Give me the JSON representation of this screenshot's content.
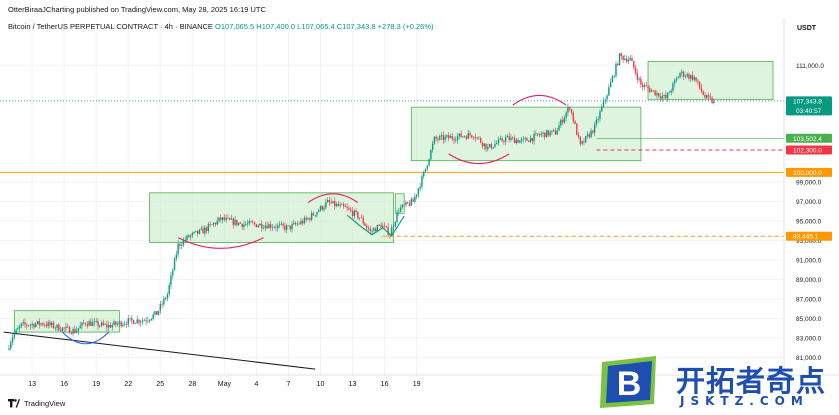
{
  "header": {
    "publisher": "OtterBiraaJCharting published on TradingView.com, May 28, 2025 16:19 UTC",
    "symbol": "Bitcoin / TetherUS PERPETUAL CONTRACT · 4h · BINANCE",
    "ohlc": "O107,065.5 H107,400.0 L107,065.4 C107,343.8 +278.3 (+0.26%)"
  },
  "currency": "USDT",
  "footer": {
    "brand": "TradingView"
  },
  "watermark": {
    "logo_letter": "B",
    "text": "开拓者奇点",
    "sub": "JSKTZ.COM"
  },
  "colors": {
    "up": "#089981",
    "down": "#f23645",
    "box_fill": "#c8ecc8",
    "box_stroke": "#4caf50",
    "arc_pink": "#e91e63",
    "arc_blue": "#2962ff",
    "hline_orange": "#ff9800",
    "hline_red": "#f23645",
    "hline_green": "#4caf50",
    "trendline": "#131722",
    "watermark_blue": "#1e4fb0",
    "watermark_green": "#7cc242"
  },
  "chart_data": {
    "type": "candlestick",
    "timeframe": "4h",
    "ylim": [
      79500,
      113800
    ],
    "y_ticks": [
      81000,
      83000,
      85000,
      87000,
      89000,
      91000,
      93000,
      95000,
      97000,
      99000,
      111000
    ],
    "y_tick_labels": [
      "81,000.0",
      "83,000.0",
      "85,000.0",
      "87,000.0",
      "89,000.0",
      "91,000.0",
      "93,000.0",
      "95,000.0",
      "97,000.0",
      "99,000.0",
      "111,000.0"
    ],
    "x_ticks": [
      "13",
      "16",
      "19",
      "22",
      "25",
      "28",
      "May",
      "4",
      "7",
      "10",
      "13",
      "16",
      "19"
    ],
    "bars_per_day": 6,
    "first_label_bar": 13,
    "labels_every_days": 3,
    "price_path": [
      {
        "bar": 0,
        "price": 81800
      },
      {
        "bar": 3,
        "price": 83200
      },
      {
        "bar": 8,
        "price": 84300
      },
      {
        "bar": 20,
        "price": 84500
      },
      {
        "bar": 30,
        "price": 84000
      },
      {
        "bar": 38,
        "price": 83700
      },
      {
        "bar": 44,
        "price": 84600
      },
      {
        "bar": 56,
        "price": 84200
      },
      {
        "bar": 68,
        "price": 84700
      },
      {
        "bar": 78,
        "price": 84900
      },
      {
        "bar": 84,
        "price": 85500
      },
      {
        "bar": 90,
        "price": 87500
      },
      {
        "bar": 96,
        "price": 92500
      },
      {
        "bar": 102,
        "price": 93400
      },
      {
        "bar": 110,
        "price": 94000
      },
      {
        "bar": 120,
        "price": 95200
      },
      {
        "bar": 132,
        "price": 94700
      },
      {
        "bar": 146,
        "price": 94600
      },
      {
        "bar": 158,
        "price": 94300
      },
      {
        "bar": 168,
        "price": 95100
      },
      {
        "bar": 180,
        "price": 96900
      },
      {
        "bar": 190,
        "price": 96300
      },
      {
        "bar": 198,
        "price": 95400
      },
      {
        "bar": 204,
        "price": 93900
      },
      {
        "bar": 210,
        "price": 94600
      },
      {
        "bar": 215,
        "price": 93700
      },
      {
        "bar": 220,
        "price": 96200
      },
      {
        "bar": 228,
        "price": 97000
      },
      {
        "bar": 234,
        "price": 99800
      },
      {
        "bar": 240,
        "price": 103400
      },
      {
        "bar": 250,
        "price": 103600
      },
      {
        "bar": 262,
        "price": 103900
      },
      {
        "bar": 270,
        "price": 102500
      },
      {
        "bar": 280,
        "price": 103500
      },
      {
        "bar": 290,
        "price": 103200
      },
      {
        "bar": 300,
        "price": 103900
      },
      {
        "bar": 308,
        "price": 104100
      },
      {
        "bar": 316,
        "price": 106800
      },
      {
        "bar": 322,
        "price": 102700
      },
      {
        "bar": 330,
        "price": 104600
      },
      {
        "bar": 338,
        "price": 108600
      },
      {
        "bar": 344,
        "price": 111900
      },
      {
        "bar": 350,
        "price": 111600
      },
      {
        "bar": 356,
        "price": 109000
      },
      {
        "bar": 362,
        "price": 108400
      },
      {
        "bar": 370,
        "price": 107600
      },
      {
        "bar": 378,
        "price": 110200
      },
      {
        "bar": 386,
        "price": 109700
      },
      {
        "bar": 392,
        "price": 107700
      },
      {
        "bar": 396,
        "price": 107300
      }
    ],
    "total_bars": 397,
    "consolidation_boxes": [
      {
        "from_bar": 3,
        "to_bar": 62,
        "low": 83600,
        "high": 85800
      },
      {
        "from_bar": 79,
        "to_bar": 216,
        "low": 92800,
        "high": 97900
      },
      {
        "from_bar": 217,
        "to_bar": 222,
        "low": 95800,
        "high": 97800
      },
      {
        "from_bar": 226,
        "to_bar": 355,
        "low": 101200,
        "high": 106700
      },
      {
        "from_bar": 359,
        "to_bar": 470,
        "low": 107500,
        "high": 111400
      }
    ],
    "horizontal_levels": [
      {
        "price": 107343.8,
        "label": "107,343.8",
        "sub": "03:40:57",
        "style": "dotted",
        "color": "#089981"
      },
      {
        "price": 103502.4,
        "label": "103,502.4",
        "style": "solid-thin",
        "color": "#4caf50"
      },
      {
        "price": 102300.0,
        "label": "102,300.0",
        "style": "dashed",
        "color": "#f23645"
      },
      {
        "price": 100000.0,
        "label": "100,000.0",
        "style": "solid",
        "color": "#ff9800"
      },
      {
        "price": 93445.1,
        "label": "93,445.1",
        "style": "dashed",
        "color": "#ff9800"
      }
    ],
    "trendline": {
      "from_bar": -3,
      "from_price": 83600,
      "to_bar": 172,
      "to_price": 79800
    },
    "arcs": [
      {
        "from_bar": 30,
        "to_bar": 56,
        "price": 83600,
        "depth": 1200,
        "direction": "down",
        "color": "blue"
      },
      {
        "from_bar": 168,
        "to_bar": 196,
        "price": 96900,
        "depth": 900,
        "direction": "up",
        "color": "pink"
      },
      {
        "from_bar": 95,
        "to_bar": 143,
        "price": 93300,
        "depth": 1100,
        "direction": "down",
        "color": "pink"
      },
      {
        "from_bar": 283,
        "to_bar": 313,
        "price": 106900,
        "depth": 1000,
        "direction": "up",
        "color": "pink"
      },
      {
        "from_bar": 247,
        "to_bar": 281,
        "price": 101900,
        "depth": 1000,
        "direction": "down",
        "color": "pink"
      }
    ],
    "w_pattern": {
      "bars": [
        190,
        198,
        204,
        210,
        215,
        222
      ],
      "prices": [
        95600,
        94400,
        93600,
        94300,
        93500,
        95500
      ]
    }
  }
}
